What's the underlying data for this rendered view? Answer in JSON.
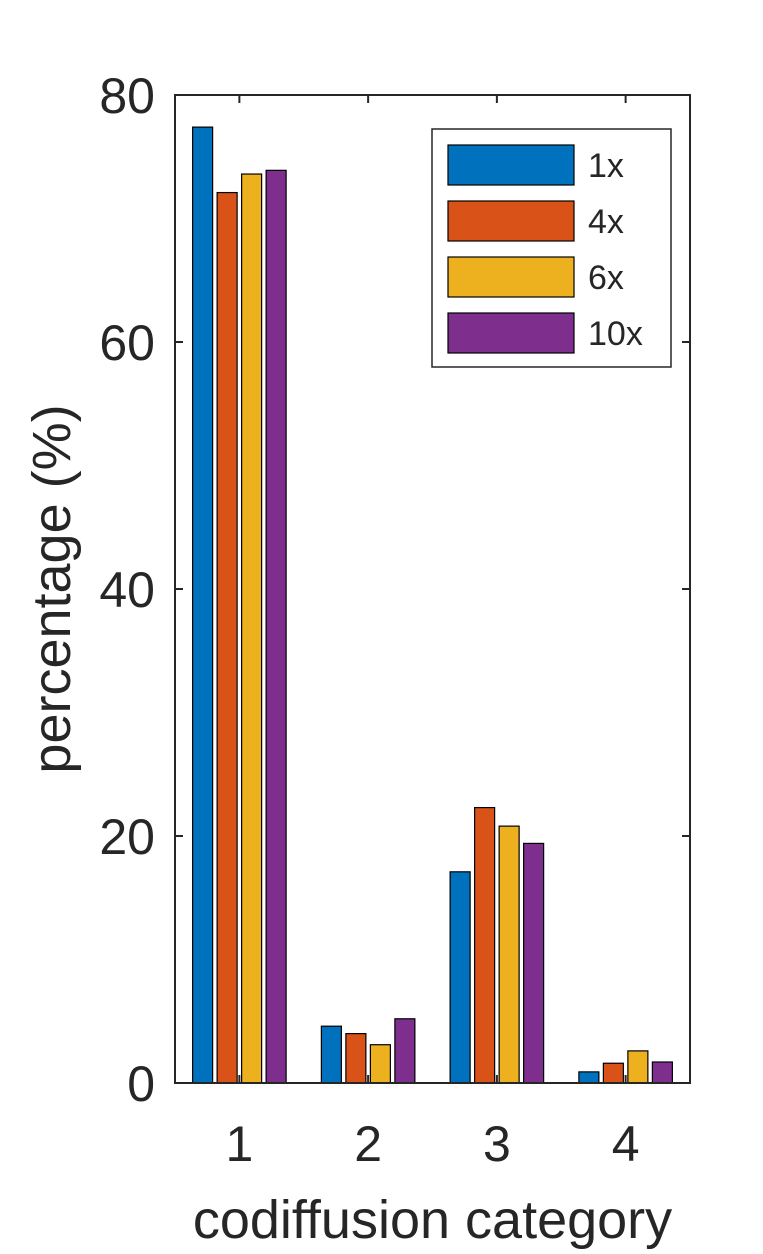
{
  "chart_data": {
    "type": "bar",
    "title": "",
    "xlabel": "codiffusion category",
    "ylabel": "percentage (%)",
    "categories": [
      "1",
      "2",
      "3",
      "4"
    ],
    "ylim": [
      0,
      80
    ],
    "yticks": [
      "0",
      "20",
      "40",
      "60",
      "80"
    ],
    "grid": false,
    "legend_position": "top-right",
    "series": [
      {
        "name": "1x",
        "color": "#0072BD",
        "values": [
          77.4,
          4.6,
          17.1,
          0.9
        ]
      },
      {
        "name": "4x",
        "color": "#D95319",
        "values": [
          72.1,
          4.0,
          22.3,
          1.6
        ]
      },
      {
        "name": "6x",
        "color": "#EDB120",
        "values": [
          73.6,
          3.1,
          20.8,
          2.6
        ]
      },
      {
        "name": "10x",
        "color": "#7E2F8E",
        "values": [
          73.9,
          5.2,
          19.4,
          1.7
        ]
      }
    ]
  }
}
